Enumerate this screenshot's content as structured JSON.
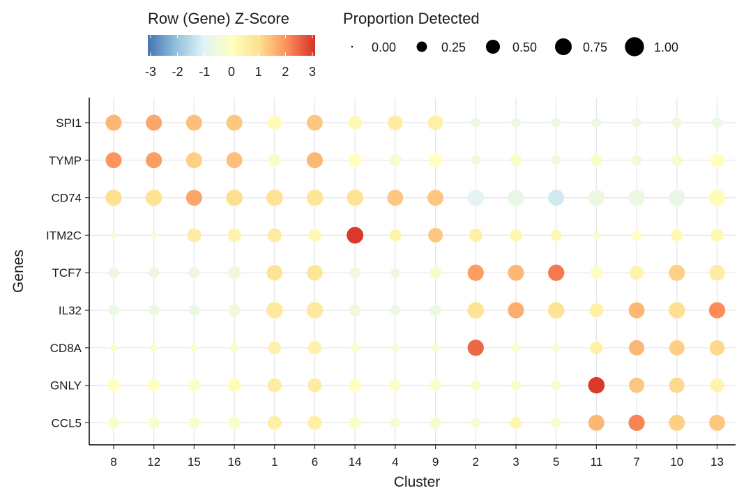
{
  "chart_data": {
    "type": "dotplot",
    "xlabel": "Cluster",
    "ylabel": "Genes",
    "grid": true,
    "categories": [
      "8",
      "12",
      "15",
      "16",
      "1",
      "6",
      "14",
      "4",
      "9",
      "2",
      "3",
      "5",
      "11",
      "7",
      "10",
      "13"
    ],
    "genes": [
      "SPI1",
      "TYMP",
      "CD74",
      "ITM2C",
      "TCF7",
      "IL32",
      "CD8A",
      "GNLY",
      "CCL5"
    ],
    "color_legend": {
      "title": "Row (Gene) Z-Score",
      "ticks": [
        "-3",
        "-2",
        "-1",
        "0",
        "1",
        "2",
        "3"
      ],
      "range": [
        -3,
        3
      ],
      "stops": [
        "#4575b4",
        "#91bfdb",
        "#e0f3f8",
        "#ffffbf",
        "#fee090",
        "#fc8d59",
        "#d73027"
      ]
    },
    "size_legend": {
      "title": "Proportion Detected",
      "values": [
        0.0,
        0.25,
        0.5,
        0.75,
        1.0
      ],
      "labels": [
        "0.00",
        "0.25",
        "0.50",
        "0.75",
        "1.00"
      ]
    },
    "series": [
      {
        "gene": "SPI1",
        "zscore": [
          1.5,
          1.7,
          1.4,
          1.3,
          0.1,
          1.3,
          0.2,
          0.6,
          0.5,
          -0.6,
          -0.6,
          -0.6,
          -0.6,
          -0.6,
          -0.5,
          -0.6
        ],
        "proportion": [
          0.68,
          0.68,
          0.68,
          0.68,
          0.55,
          0.66,
          0.5,
          0.58,
          0.6,
          0.2,
          0.2,
          0.2,
          0.2,
          0.2,
          0.25,
          0.25
        ]
      },
      {
        "gene": "TYMP",
        "zscore": [
          1.9,
          1.8,
          1.2,
          1.4,
          -0.2,
          1.5,
          0.0,
          -0.3,
          0.0,
          -0.5,
          -0.1,
          -0.5,
          -0.2,
          -0.4,
          -0.3,
          0.0
        ],
        "proportion": [
          0.68,
          0.68,
          0.68,
          0.68,
          0.4,
          0.68,
          0.45,
          0.38,
          0.45,
          0.22,
          0.35,
          0.2,
          0.35,
          0.25,
          0.3,
          0.5
        ]
      },
      {
        "gene": "CD74",
        "zscore": [
          1.0,
          0.9,
          1.7,
          1.0,
          0.9,
          0.8,
          0.9,
          1.3,
          1.3,
          -0.9,
          -0.7,
          -1.2,
          -0.6,
          -0.6,
          -0.7,
          0.1
        ],
        "proportion": [
          0.7,
          0.7,
          0.68,
          0.72,
          0.72,
          0.72,
          0.72,
          0.68,
          0.68,
          0.72,
          0.72,
          0.68,
          0.72,
          0.72,
          0.72,
          0.72
        ]
      },
      {
        "gene": "ITM2C",
        "zscore": [
          -0.2,
          -0.2,
          0.6,
          0.4,
          0.6,
          0.2,
          2.9,
          0.4,
          1.3,
          0.5,
          0.3,
          0.2,
          -0.2,
          0.0,
          0.2,
          0.2
        ],
        "proportion": [
          0.05,
          0.05,
          0.5,
          0.45,
          0.5,
          0.4,
          0.74,
          0.35,
          0.55,
          0.45,
          0.35,
          0.3,
          0.1,
          0.2,
          0.35,
          0.45
        ]
      },
      {
        "gene": "TCF7",
        "zscore": [
          -0.6,
          -0.6,
          -0.6,
          -0.5,
          0.9,
          0.8,
          -0.5,
          -0.6,
          -0.3,
          1.8,
          1.5,
          2.2,
          -0.1,
          0.4,
          1.2,
          0.6
        ],
        "proportion": [
          0.25,
          0.25,
          0.3,
          0.4,
          0.65,
          0.65,
          0.3,
          0.2,
          0.35,
          0.7,
          0.68,
          0.7,
          0.4,
          0.5,
          0.68,
          0.65
        ]
      },
      {
        "gene": "IL32",
        "zscore": [
          -0.6,
          -0.6,
          -0.6,
          -0.5,
          0.7,
          0.7,
          -0.5,
          -0.6,
          -0.6,
          0.9,
          1.6,
          0.9,
          0.5,
          1.5,
          1.0,
          2.0
        ],
        "proportion": [
          0.28,
          0.28,
          0.3,
          0.38,
          0.72,
          0.72,
          0.35,
          0.25,
          0.3,
          0.72,
          0.7,
          0.72,
          0.5,
          0.68,
          0.7,
          0.7
        ]
      },
      {
        "gene": "CD8A",
        "zscore": [
          -0.2,
          -0.2,
          -0.2,
          -0.2,
          0.5,
          0.5,
          -0.2,
          -0.3,
          -0.3,
          2.4,
          -0.2,
          -0.3,
          0.5,
          1.5,
          1.2,
          1.1
        ],
        "proportion": [
          0.1,
          0.1,
          0.1,
          0.15,
          0.4,
          0.45,
          0.15,
          0.1,
          0.1,
          0.7,
          0.15,
          0.1,
          0.4,
          0.62,
          0.62,
          0.6
        ]
      },
      {
        "gene": "GNLY",
        "zscore": [
          0.0,
          0.0,
          -0.1,
          0.1,
          0.6,
          0.6,
          0.0,
          -0.1,
          -0.1,
          -0.2,
          -0.2,
          -0.3,
          2.9,
          1.3,
          1.1,
          0.4
        ],
        "proportion": [
          0.35,
          0.38,
          0.38,
          0.45,
          0.5,
          0.5,
          0.4,
          0.3,
          0.3,
          0.25,
          0.25,
          0.25,
          0.72,
          0.62,
          0.62,
          0.5
        ]
      },
      {
        "gene": "CCL5",
        "zscore": [
          -0.2,
          -0.2,
          -0.2,
          -0.2,
          0.5,
          0.5,
          -0.2,
          -0.3,
          -0.3,
          -0.3,
          0.3,
          -0.3,
          1.5,
          2.1,
          1.2,
          1.3
        ],
        "proportion": [
          0.3,
          0.3,
          0.3,
          0.38,
          0.5,
          0.5,
          0.35,
          0.25,
          0.3,
          0.2,
          0.35,
          0.25,
          0.68,
          0.7,
          0.68,
          0.68
        ]
      }
    ]
  }
}
